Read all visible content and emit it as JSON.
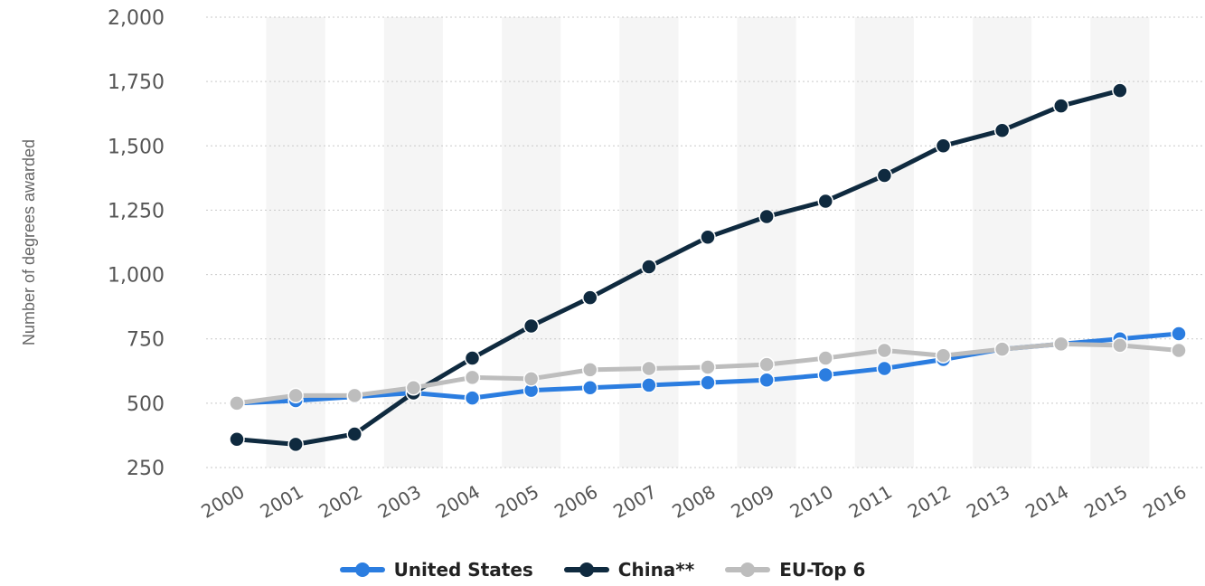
{
  "chart_data": {
    "type": "line",
    "title": "",
    "xlabel": "",
    "ylabel": "Number of degrees awarded",
    "ylim": [
      250,
      2000
    ],
    "y_ticks": [
      250,
      500,
      750,
      1000,
      1250,
      1500,
      1750,
      2000
    ],
    "y_tick_labels": [
      "250",
      "500",
      "750",
      "1,000",
      "1,250",
      "1,500",
      "1,750",
      "2,000"
    ],
    "categories": [
      "2000",
      "2001",
      "2002",
      "2003",
      "2004",
      "2005",
      "2006",
      "2007",
      "2008",
      "2009",
      "2010",
      "2011",
      "2012",
      "2013",
      "2014",
      "2015",
      "2016"
    ],
    "grid": true,
    "legend": "bottom",
    "series": [
      {
        "name": "United States",
        "color": "#2b7de0",
        "values": [
          500,
          510,
          525,
          540,
          520,
          550,
          560,
          570,
          580,
          590,
          610,
          635,
          670,
          710,
          730,
          750,
          770
        ]
      },
      {
        "name": "China**",
        "color": "#0f2a3f",
        "values": [
          360,
          340,
          380,
          540,
          675,
          800,
          910,
          1030,
          1145,
          1225,
          1285,
          1385,
          1500,
          1560,
          1655,
          1715,
          null
        ]
      },
      {
        "name": "EU-Top 6",
        "color": "#bdbdbd",
        "values": [
          500,
          530,
          530,
          560,
          600,
          595,
          630,
          635,
          640,
          650,
          675,
          705,
          685,
          710,
          730,
          725,
          705
        ]
      }
    ]
  }
}
